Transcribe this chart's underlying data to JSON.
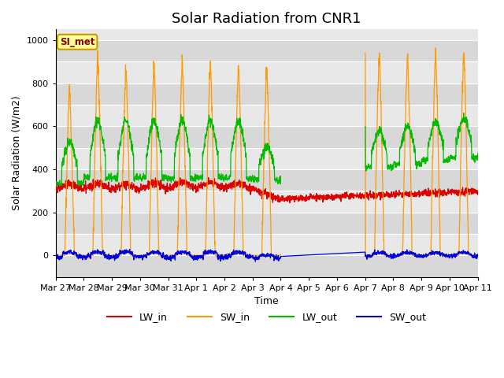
{
  "title": "Solar Radiation from CNR1",
  "xlabel": "Time",
  "ylabel": "Solar Radiation (W/m2)",
  "ylim": [
    -100,
    1050
  ],
  "tick_labels": [
    "Mar 27",
    "Mar 28",
    "Mar 29",
    "Mar 30",
    "Mar 31",
    "Apr 1",
    "Apr 2",
    "Apr 3",
    "Apr 4",
    "Apr 5",
    "Apr 6",
    "Apr 7",
    "Apr 8",
    "Apr 9",
    "Apr 10",
    "Apr 11"
  ],
  "fig_bg": "#ffffff",
  "plot_bg": "#e8e8e8",
  "grid_color": "#ffffff",
  "legend_label": "SI_met",
  "legend_bg": "#ffff99",
  "legend_border": "#cc9900",
  "line_colors": {
    "LW_in": "#dd0000",
    "SW_in": "#ff9900",
    "LW_out": "#00bb00",
    "SW_out": "#0000dd"
  },
  "title_fontsize": 13,
  "axis_label_fontsize": 9,
  "tick_fontsize": 8
}
